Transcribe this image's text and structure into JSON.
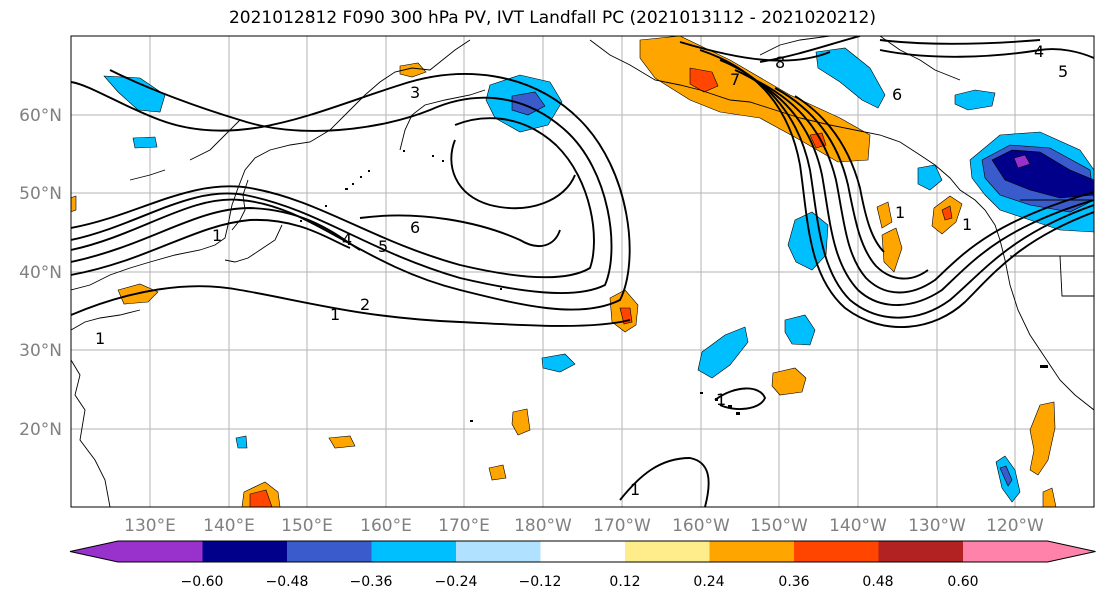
{
  "title": "2021012812 F090 300 hPa PV, IVT Landfall PC (2021013112 - 2021020212)",
  "lat_ticks": [
    "20°N",
    "30°N",
    "40°N",
    "50°N",
    "60°N"
  ],
  "lon_ticks": [
    "130°E",
    "140°E",
    "150°E",
    "160°E",
    "170°E",
    "180°W",
    "170°W",
    "160°W",
    "150°W",
    "140°W",
    "130°W",
    "120°W"
  ],
  "colorbar": {
    "levels": [
      "−0.60",
      "−0.48",
      "−0.36",
      "−0.24",
      "−0.12",
      "0.12",
      "0.24",
      "0.36",
      "0.48",
      "0.60"
    ],
    "colors": [
      "#9932CC",
      "#00008B",
      "#3A5BCB",
      "#00BFFF",
      "#B0E2FF",
      "#FFFFFF",
      "#FFEC8B",
      "#FFA500",
      "#FF4500",
      "#B22222",
      "#FF82AB"
    ]
  },
  "contour_labels": {
    "c3": "3",
    "c6a": "6",
    "c1a": "1",
    "c4a": "4",
    "c5a": "5",
    "c1b": "1",
    "c2": "2",
    "c1c": "1",
    "c8": "8",
    "c7": "7",
    "c6b": "6",
    "c5b": "5",
    "c4b": "4",
    "c1d": "1",
    "c1e": "1",
    "c1f": "1",
    "c1g": "1"
  }
}
